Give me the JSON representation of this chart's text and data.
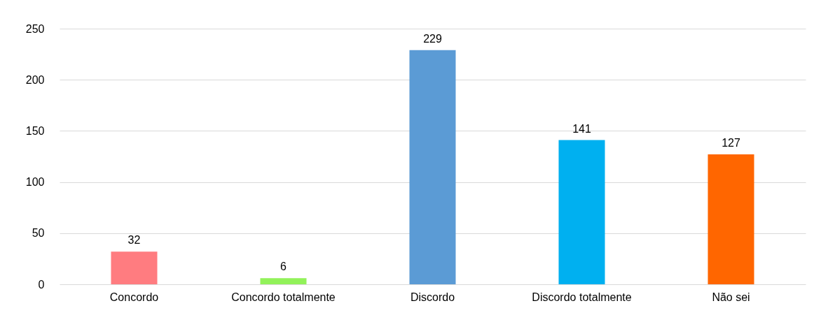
{
  "chart_data": {
    "type": "bar",
    "categories": [
      "Concordo",
      "Concordo totalmente",
      "Discordo",
      "Discordo totalmente",
      "Não sei"
    ],
    "values": [
      32,
      6,
      229,
      141,
      127
    ],
    "colors": [
      "#ff7c80",
      "#92f25a",
      "#5b9bd5",
      "#00b0f0",
      "#ff6600"
    ],
    "ylim": [
      0,
      250
    ],
    "yticks": [
      0,
      50,
      100,
      150,
      200,
      250
    ],
    "grid": "y",
    "data_labels": true
  }
}
